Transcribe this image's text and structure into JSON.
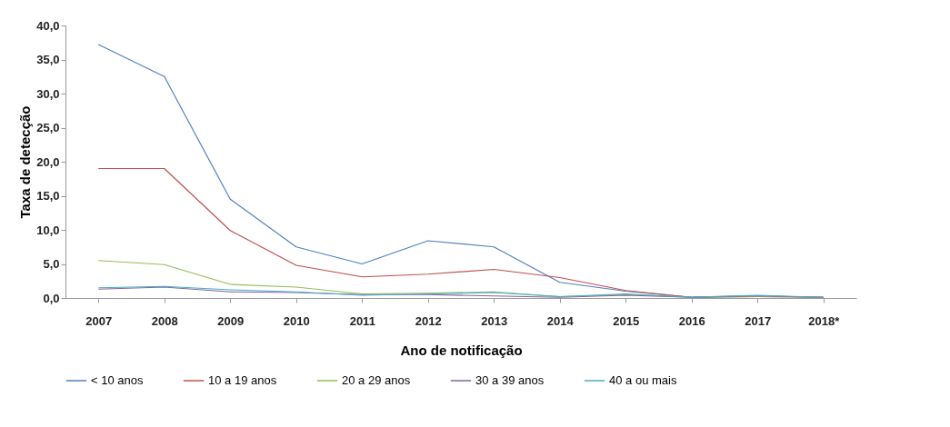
{
  "chart_data": {
    "type": "line",
    "xlabel": "Ano de notificação",
    "ylabel": "Taxa de detecção",
    "categories": [
      "2007",
      "2008",
      "2009",
      "2010",
      "2011",
      "2012",
      "2013",
      "2014",
      "2015",
      "2016",
      "2017",
      "2018*"
    ],
    "series": [
      {
        "name": "< 10 anos",
        "color": "#4f81bd",
        "values": [
          37.2,
          32.5,
          14.5,
          7.5,
          5.0,
          8.4,
          7.5,
          2.3,
          1.0,
          0.1,
          0.3,
          0.1
        ]
      },
      {
        "name": "10 a 19 anos",
        "color": "#c0504d",
        "values": [
          19.0,
          19.0,
          9.9,
          4.8,
          3.1,
          3.5,
          4.2,
          3.0,
          1.1,
          0.1,
          0.2,
          0.1
        ]
      },
      {
        "name": "20 a 29 anos",
        "color": "#9bbb59",
        "values": [
          5.5,
          4.9,
          2.0,
          1.6,
          0.6,
          0.7,
          0.9,
          0.2,
          0.5,
          0.1,
          0.2,
          0.1
        ]
      },
      {
        "name": "30 a 39 anos",
        "color": "#8064a2",
        "values": [
          1.3,
          1.6,
          0.9,
          0.8,
          0.5,
          0.5,
          0.3,
          0.1,
          0.4,
          0.1,
          0.3,
          0.1
        ]
      },
      {
        "name": "40 a ou mais",
        "color": "#4bacc6",
        "values": [
          1.5,
          1.7,
          1.2,
          0.9,
          0.4,
          0.6,
          0.8,
          0.2,
          0.6,
          0.1,
          0.4,
          0.1
        ]
      }
    ],
    "ylim": [
      0,
      40
    ],
    "yticks": [
      {
        "value": 0,
        "label": "0,0"
      },
      {
        "value": 5,
        "label": "5,0"
      },
      {
        "value": 10,
        "label": "10,0"
      },
      {
        "value": 15,
        "label": "15,0"
      },
      {
        "value": 20,
        "label": "20,0"
      },
      {
        "value": 25,
        "label": "25,0"
      },
      {
        "value": 30,
        "label": "30,0"
      },
      {
        "value": 35,
        "label": "35,0"
      },
      {
        "value": 40,
        "label": "40,0"
      }
    ],
    "grid": false,
    "legend": "bottom",
    "marker": "none",
    "line_style": "solid"
  }
}
